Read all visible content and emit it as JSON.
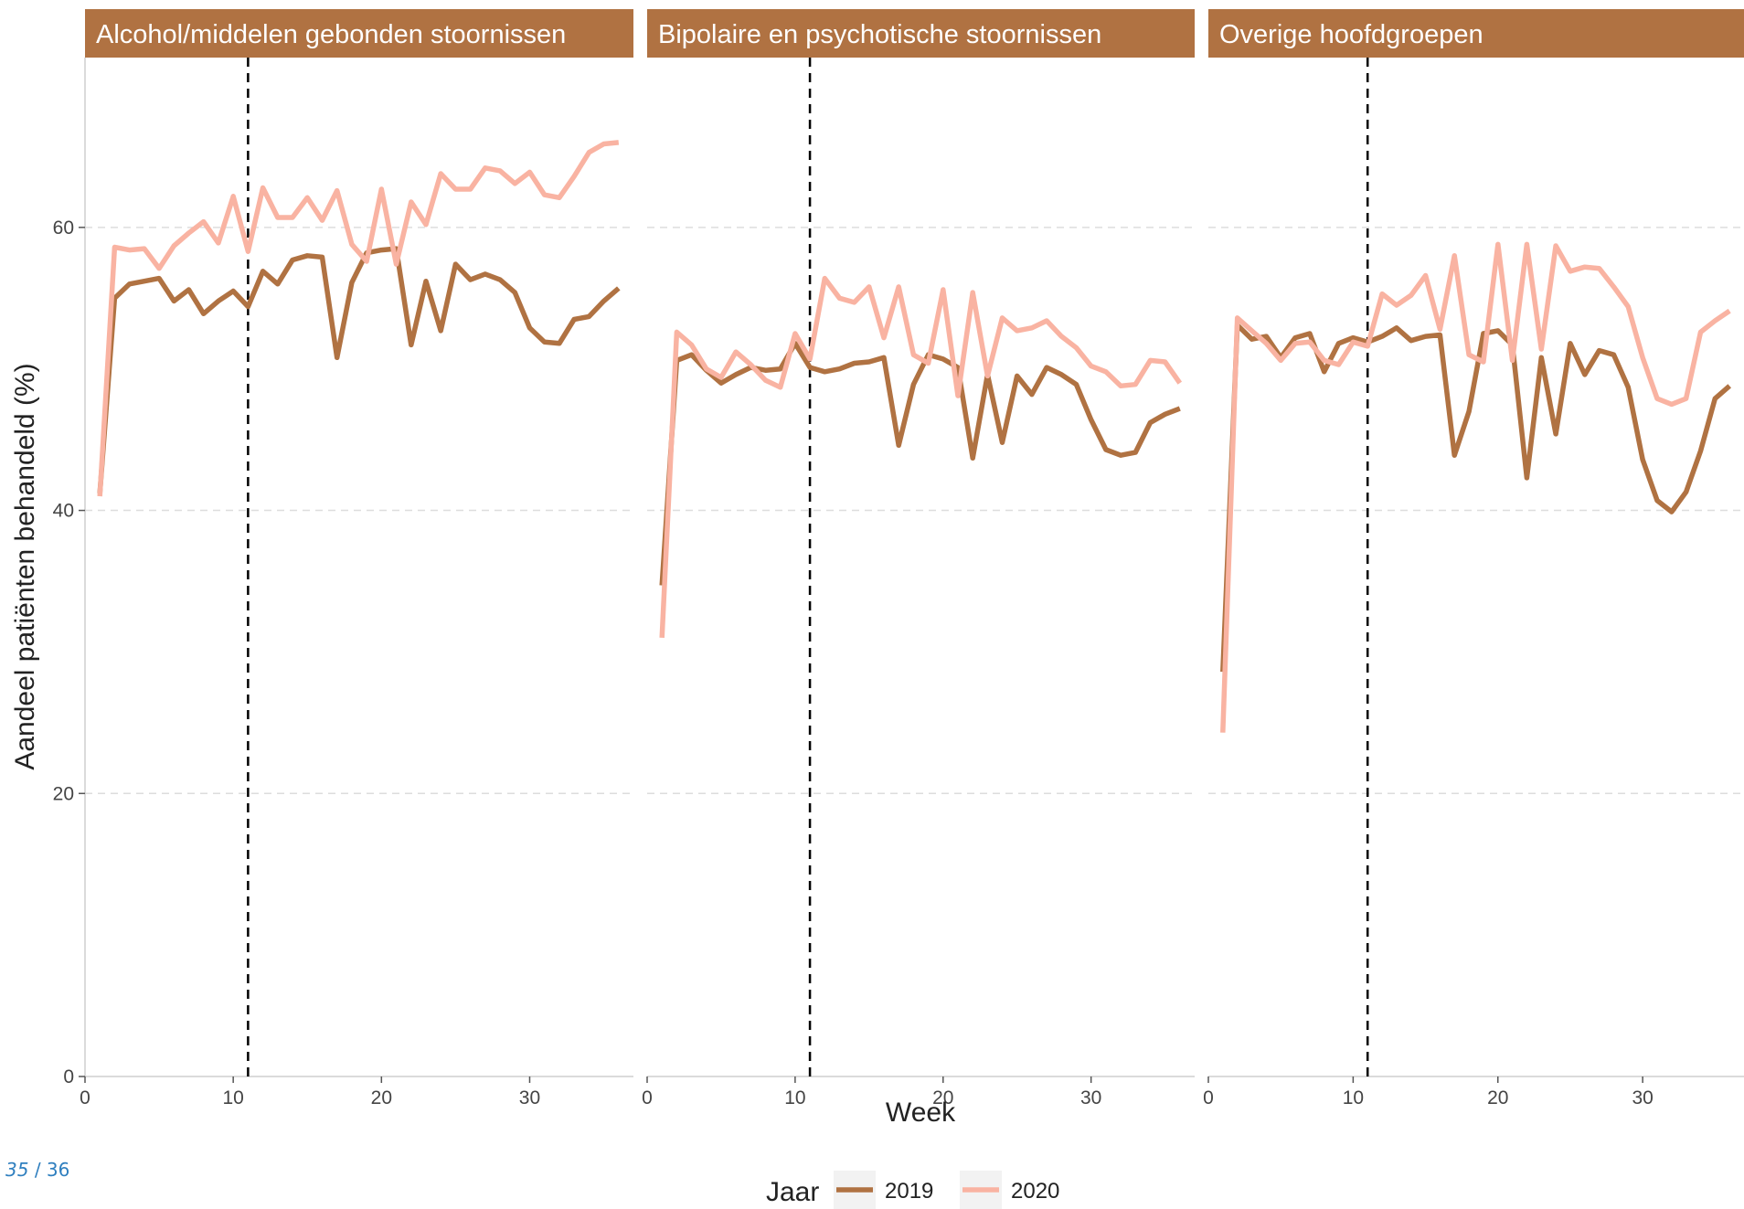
{
  "pager": {
    "current": "35",
    "separator": "/",
    "total": "36"
  },
  "colors": {
    "strip": "#B07242",
    "series_2019": "#B07242",
    "series_2020": "#F9B3A2",
    "grid": "#DDDDDD",
    "vline": "#000000"
  },
  "chart_data": {
    "type": "line",
    "xlabel": "Week",
    "ylabel": "Aandeel patiënten behandeld (%)",
    "xlim": [
      0,
      37
    ],
    "ylim": [
      0,
      72
    ],
    "xticks": [
      0,
      10,
      20,
      30
    ],
    "yticks": [
      0,
      20,
      40,
      60
    ],
    "grid": "horizontal dashed",
    "vline_x": 11,
    "legend": {
      "title": "Jaar",
      "position": "bottom",
      "entries": [
        "2019",
        "2020"
      ]
    },
    "x": [
      1,
      2,
      3,
      4,
      5,
      6,
      7,
      8,
      9,
      10,
      11,
      12,
      13,
      14,
      15,
      16,
      17,
      18,
      19,
      20,
      21,
      22,
      23,
      24,
      25,
      26,
      27,
      28,
      29,
      30,
      31,
      32,
      33,
      34,
      35,
      36
    ],
    "panels": [
      {
        "title": "Alcohol/middelen gebonden stoornissen",
        "series": [
          {
            "name": "2019",
            "values": [
              41.2,
              55.0,
              56.0,
              56.2,
              56.4,
              54.8,
              55.6,
              53.9,
              54.8,
              55.5,
              54.4,
              56.9,
              56.0,
              57.7,
              58.0,
              57.9,
              50.8,
              56.1,
              58.2,
              58.4,
              58.5,
              51.7,
              56.2,
              52.7,
              57.4,
              56.3,
              56.7,
              56.3,
              55.4,
              52.9,
              51.9,
              51.8,
              53.5,
              53.7,
              54.8,
              55.7
            ]
          },
          {
            "name": "2020",
            "values": [
              41.0,
              58.6,
              58.4,
              58.5,
              57.1,
              58.7,
              59.6,
              60.4,
              58.9,
              62.2,
              58.3,
              62.8,
              60.7,
              60.7,
              62.1,
              60.5,
              62.6,
              58.8,
              57.6,
              62.7,
              57.4,
              61.8,
              60.2,
              63.8,
              62.7,
              62.7,
              64.2,
              64.0,
              63.1,
              63.9,
              62.3,
              62.1,
              63.6,
              65.3,
              65.9,
              66.0
            ]
          }
        ]
      },
      {
        "title": "Bipolaire en psychotische stoornissen",
        "series": [
          {
            "name": "2019",
            "values": [
              34.7,
              50.6,
              51.0,
              49.9,
              49.0,
              49.6,
              50.1,
              49.9,
              50.0,
              51.8,
              50.1,
              49.8,
              50.0,
              50.4,
              50.5,
              50.8,
              44.6,
              48.9,
              51.0,
              50.7,
              50.1,
              43.7,
              49.6,
              44.8,
              49.5,
              48.2,
              50.1,
              49.6,
              48.9,
              46.4,
              44.3,
              43.9,
              44.1,
              46.2,
              46.8,
              47.2
            ]
          },
          {
            "name": "2020",
            "values": [
              31.0,
              52.6,
              51.7,
              50.0,
              49.4,
              51.2,
              50.3,
              49.2,
              48.7,
              52.5,
              50.7,
              56.4,
              55.0,
              54.7,
              55.8,
              52.2,
              55.8,
              51.0,
              50.4,
              55.6,
              48.1,
              55.4,
              49.5,
              53.6,
              52.7,
              52.9,
              53.4,
              52.3,
              51.5,
              50.2,
              49.8,
              48.8,
              48.9,
              50.6,
              50.5,
              49.0
            ]
          }
        ]
      },
      {
        "title": "Overige hoofdgroepen",
        "series": [
          {
            "name": "2019",
            "values": [
              28.6,
              53.1,
              52.1,
              52.3,
              50.8,
              52.2,
              52.5,
              49.8,
              51.8,
              52.2,
              51.9,
              52.3,
              52.9,
              52.0,
              52.3,
              52.4,
              43.9,
              47.0,
              52.5,
              52.7,
              51.7,
              42.3,
              50.8,
              45.4,
              51.8,
              49.6,
              51.3,
              51.0,
              48.7,
              43.6,
              40.7,
              39.9,
              41.3,
              44.2,
              47.9,
              48.8
            ]
          },
          {
            "name": "2020",
            "values": [
              24.3,
              53.6,
              52.7,
              51.8,
              50.6,
              51.8,
              51.9,
              50.6,
              50.3,
              51.9,
              51.6,
              55.3,
              54.5,
              55.2,
              56.6,
              52.8,
              58.0,
              51.0,
              50.5,
              58.8,
              50.6,
              58.8,
              51.4,
              58.7,
              56.9,
              57.2,
              57.1,
              55.8,
              54.4,
              50.8,
              47.9,
              47.5,
              47.9,
              52.6,
              53.4,
              54.1
            ]
          }
        ]
      }
    ]
  }
}
